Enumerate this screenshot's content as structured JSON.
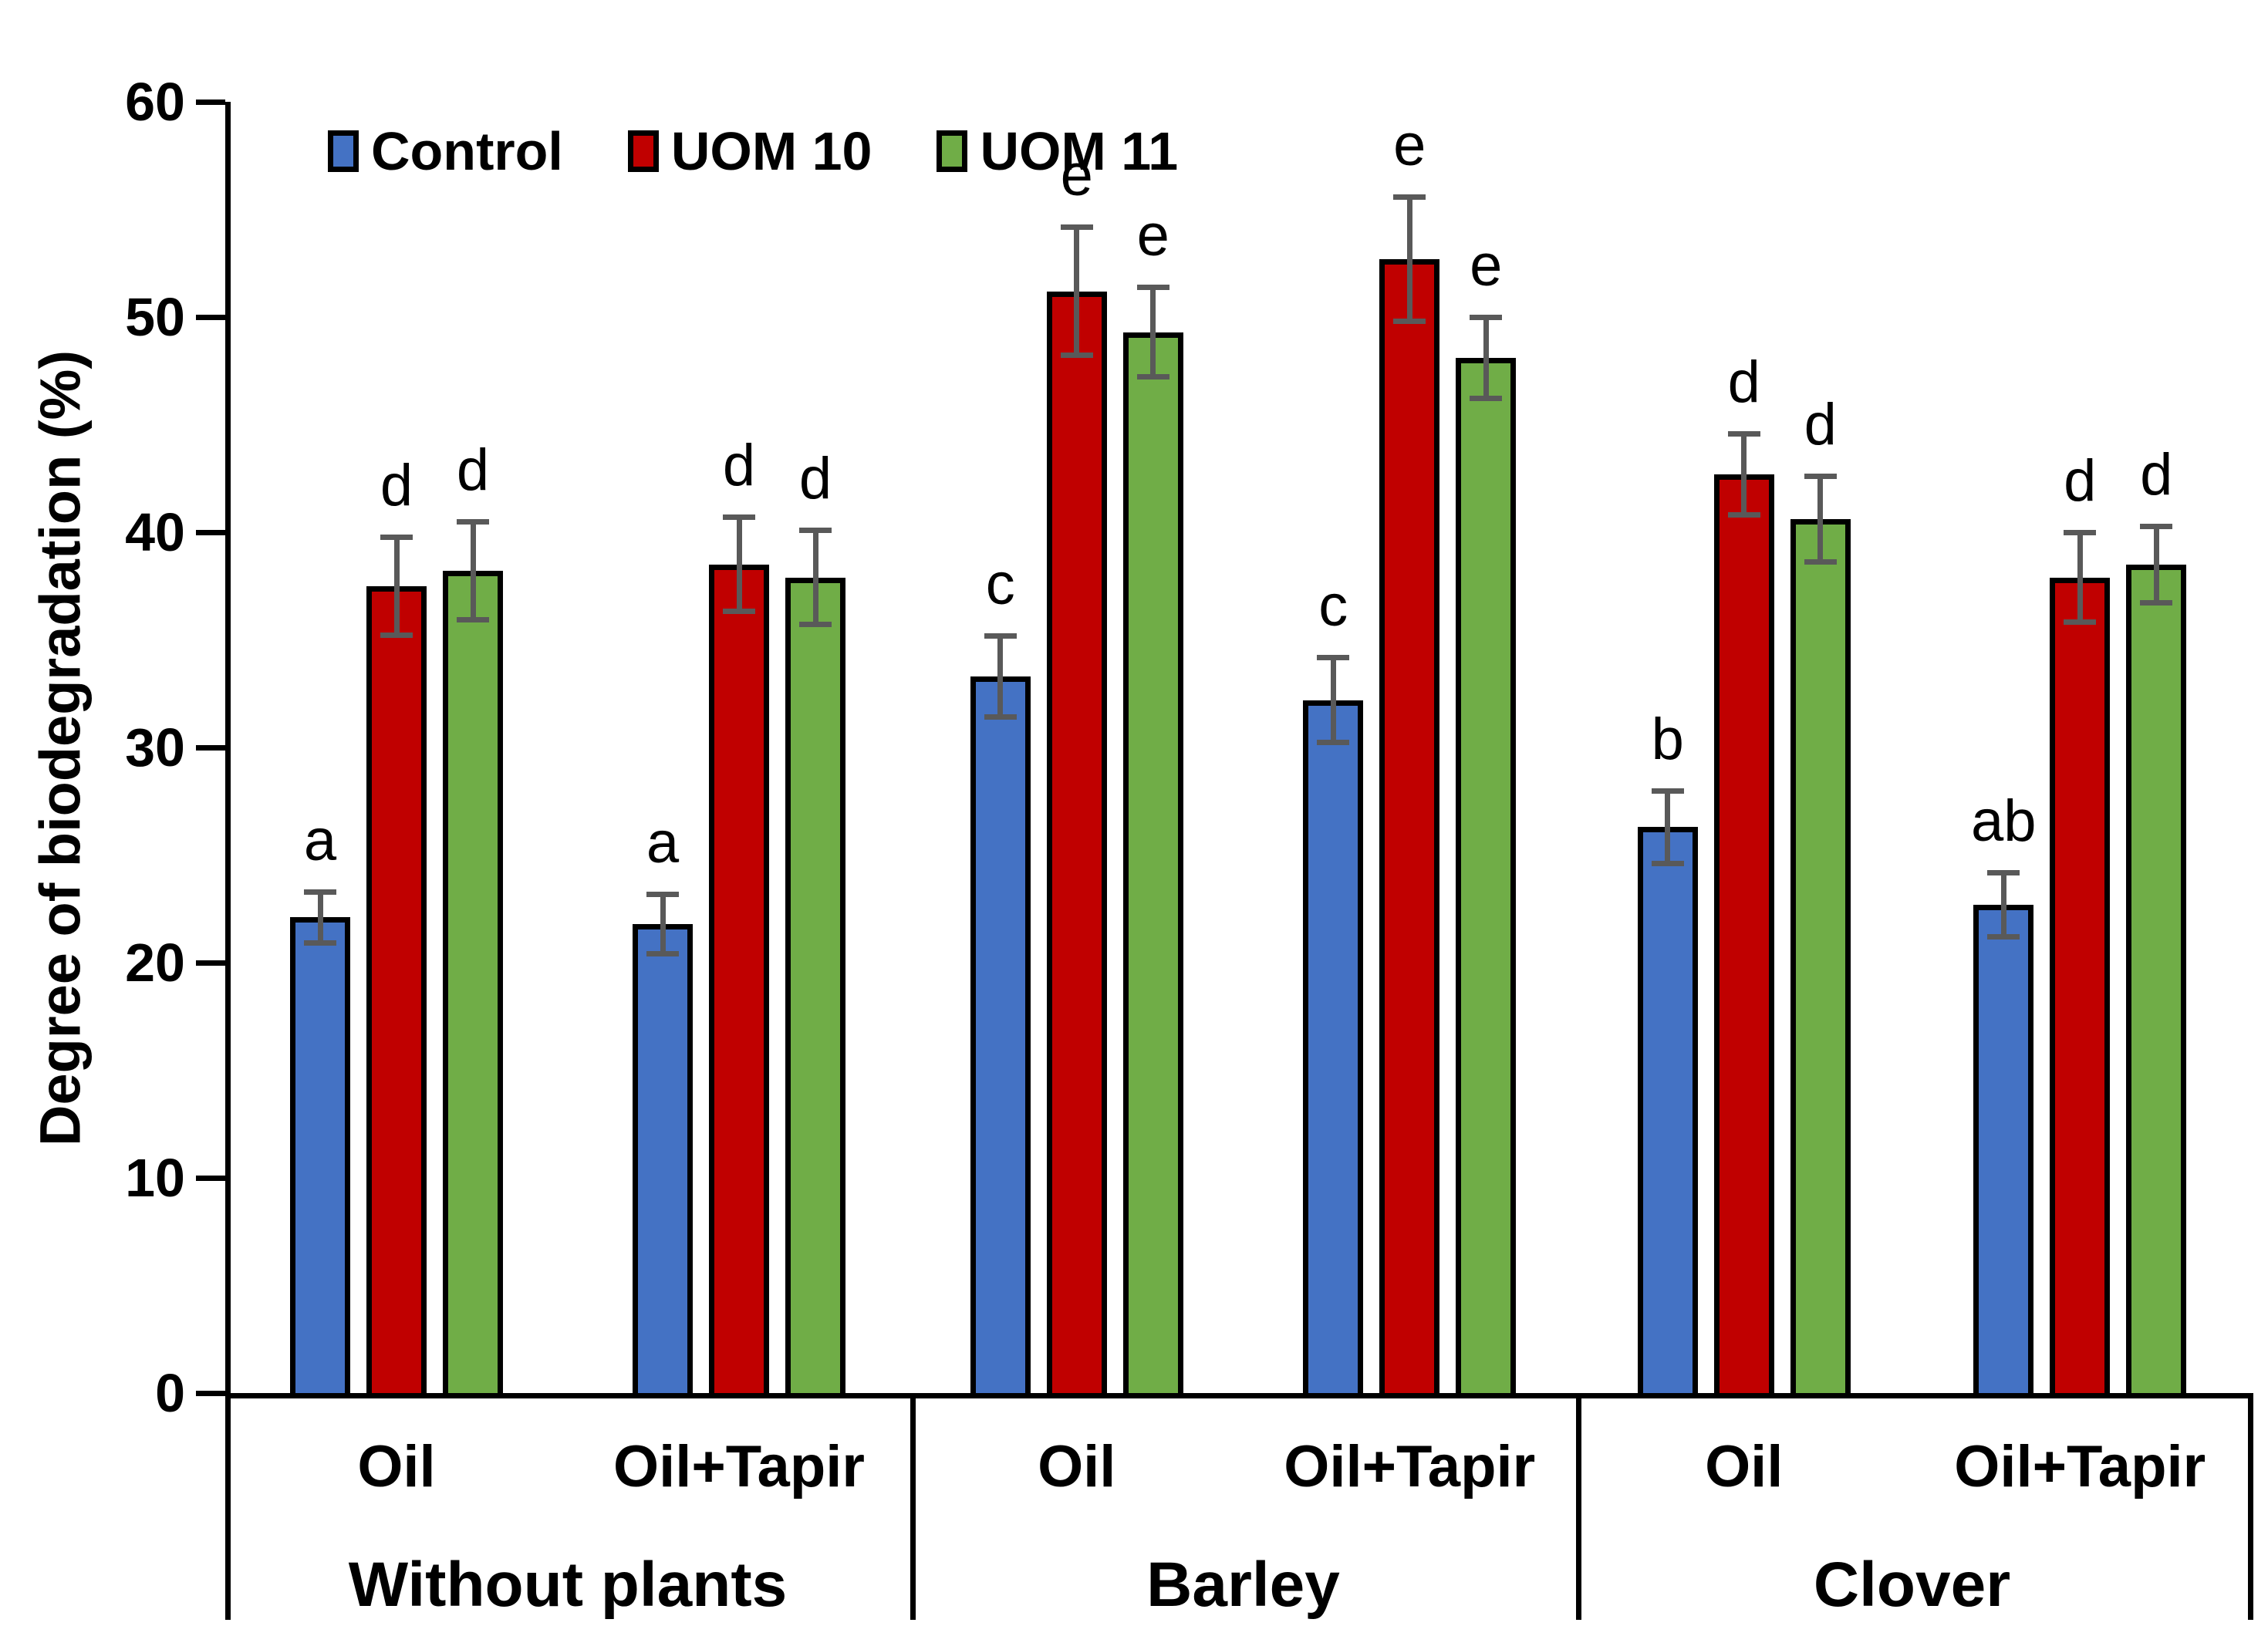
{
  "chart_data": {
    "type": "bar",
    "title": "",
    "ylabel": "Degree of biodegradation (%)",
    "xlabel": "",
    "ylim": [
      0,
      60
    ],
    "yticks": [
      0,
      10,
      20,
      30,
      40,
      50,
      60
    ],
    "grid": false,
    "legend_position": "top-left-inside",
    "series_names": [
      "Control",
      "UOM 10",
      "UOM 11"
    ],
    "series_colors": [
      "#4472C4",
      "#C00000",
      "#70AD47"
    ],
    "error_bar_color": "#595959",
    "bar_border_color": "#000000",
    "groups": [
      {
        "label": "Without plants",
        "subgroups": [
          {
            "label": "Oil",
            "bars": [
              {
                "series": "Control",
                "value": 22.1,
                "error": 1.2,
                "letter": "a"
              },
              {
                "series": "UOM 10",
                "value": 37.5,
                "error": 2.3,
                "letter": "d"
              },
              {
                "series": "UOM 11",
                "value": 38.2,
                "error": 2.3,
                "letter": "d"
              }
            ]
          },
          {
            "label": "Oil+Tapir",
            "bars": [
              {
                "series": "Control",
                "value": 21.8,
                "error": 1.4,
                "letter": "a"
              },
              {
                "series": "UOM 10",
                "value": 38.5,
                "error": 2.2,
                "letter": "d"
              },
              {
                "series": "UOM 11",
                "value": 37.9,
                "error": 2.2,
                "letter": "d"
              }
            ]
          }
        ]
      },
      {
        "label": "Barley",
        "subgroups": [
          {
            "label": "Oil",
            "bars": [
              {
                "series": "Control",
                "value": 33.3,
                "error": 1.9,
                "letter": "c"
              },
              {
                "series": "UOM 10",
                "value": 51.2,
                "error": 3.0,
                "letter": "e"
              },
              {
                "series": "UOM 11",
                "value": 49.3,
                "error": 2.1,
                "letter": "e"
              }
            ]
          },
          {
            "label": "Oil+Tapir",
            "bars": [
              {
                "series": "Control",
                "value": 32.2,
                "error": 2.0,
                "letter": "c"
              },
              {
                "series": "UOM 10",
                "value": 52.7,
                "error": 2.9,
                "letter": "e"
              },
              {
                "series": "UOM 11",
                "value": 48.1,
                "error": 1.9,
                "letter": "e"
              }
            ]
          }
        ]
      },
      {
        "label": "Clover",
        "subgroups": [
          {
            "label": "Oil",
            "bars": [
              {
                "series": "Control",
                "value": 26.3,
                "error": 1.7,
                "letter": "b"
              },
              {
                "series": "UOM 10",
                "value": 42.7,
                "error": 1.9,
                "letter": "d"
              },
              {
                "series": "UOM 11",
                "value": 40.6,
                "error": 2.0,
                "letter": "d"
              }
            ]
          },
          {
            "label": "Oil+Tapir",
            "bars": [
              {
                "series": "Control",
                "value": 22.7,
                "error": 1.5,
                "letter": "ab"
              },
              {
                "series": "UOM 10",
                "value": 37.9,
                "error": 2.1,
                "letter": "d"
              },
              {
                "series": "UOM 11",
                "value": 38.5,
                "error": 1.8,
                "letter": "d"
              }
            ]
          }
        ]
      }
    ]
  }
}
